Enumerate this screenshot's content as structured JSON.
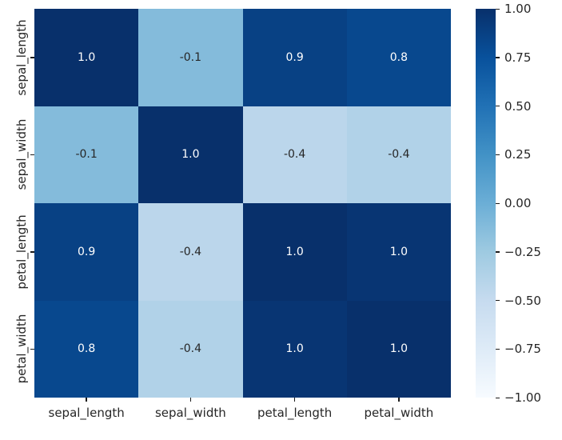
{
  "chart_data": {
    "type": "heatmap",
    "title": "",
    "xlabel": "",
    "ylabel": "",
    "colormap": "Blues",
    "vmin": -1,
    "vmax": 1,
    "x_categories": [
      "sepal_length",
      "sepal_width",
      "petal_length",
      "petal_width"
    ],
    "y_categories": [
      "sepal_length",
      "sepal_width",
      "petal_length",
      "petal_width"
    ],
    "values": [
      [
        1.0,
        -0.1,
        0.9,
        0.8
      ],
      [
        -0.1,
        1.0,
        -0.4,
        -0.4
      ],
      [
        0.9,
        -0.4,
        1.0,
        1.0
      ],
      [
        0.8,
        -0.4,
        1.0,
        1.0
      ]
    ],
    "annotations": [
      [
        "1.0",
        "-0.1",
        "0.9",
        "0.8"
      ],
      [
        "-0.1",
        "1.0",
        "-0.4",
        "-0.4"
      ],
      [
        "0.9",
        "-0.4",
        "1.0",
        "1.0"
      ],
      [
        "0.8",
        "-0.4",
        "1.0",
        "1.0"
      ]
    ],
    "cell_colors": [
      [
        "#08306b",
        "#84bbdb",
        "#084184",
        "#08488e"
      ],
      [
        "#84bbdb",
        "#08306b",
        "#bbd6eb",
        "#b1d2e8"
      ],
      [
        "#084184",
        "#bbd6eb",
        "#08306b",
        "#083573"
      ],
      [
        "#08488e",
        "#b1d2e8",
        "#083573",
        "#08306b"
      ]
    ],
    "cell_text_colors": [
      [
        "#ffffff",
        "#262626",
        "#ffffff",
        "#ffffff"
      ],
      [
        "#262626",
        "#ffffff",
        "#262626",
        "#262626"
      ],
      [
        "#ffffff",
        "#262626",
        "#ffffff",
        "#ffffff"
      ],
      [
        "#ffffff",
        "#262626",
        "#ffffff",
        "#ffffff"
      ]
    ],
    "colorbar": {
      "tick_labels": [
        "1.00",
        "0.75",
        "0.50",
        "0.25",
        "0.00",
        "−0.25",
        "−0.50",
        "−0.75",
        "−1.00"
      ],
      "gradient_stops_top_to_bottom": [
        "#08306b",
        "#08519c",
        "#2171b5",
        "#4292c6",
        "#6baed6",
        "#9ecae1",
        "#c6dbef",
        "#deebf7",
        "#f7fbff"
      ]
    },
    "grid": false,
    "legend_position": "right-colorbar"
  },
  "colors": {
    "background": "#ffffff",
    "tick_mark": "#1a1a1a",
    "label_text": "#262626"
  }
}
